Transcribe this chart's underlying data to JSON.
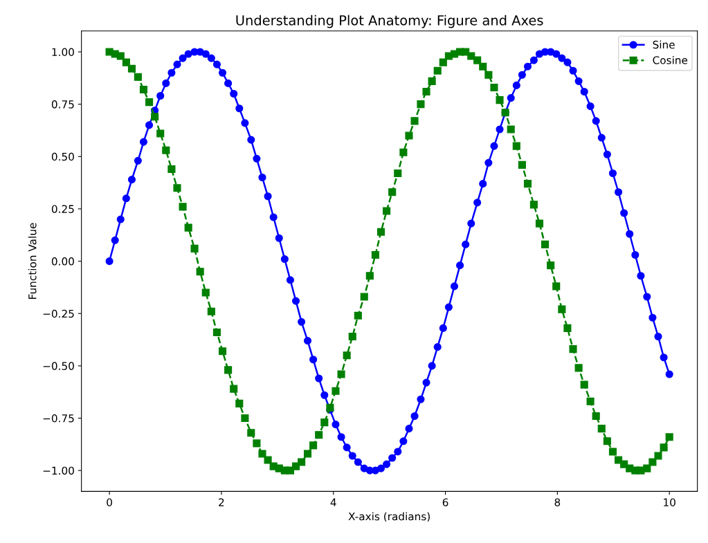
{
  "chart_data": {
    "type": "line",
    "title": "Understanding Plot Anatomy: Figure and Axes",
    "xlabel": "X-axis (radians)",
    "ylabel": "Function Value",
    "x": [
      0.0,
      0.1,
      0.2,
      0.3,
      0.4,
      0.51,
      0.61,
      0.71,
      0.81,
      0.91,
      1.01,
      1.11,
      1.21,
      1.31,
      1.41,
      1.52,
      1.62,
      1.72,
      1.82,
      1.92,
      2.02,
      2.12,
      2.22,
      2.32,
      2.42,
      2.53,
      2.63,
      2.73,
      2.83,
      2.93,
      3.03,
      3.13,
      3.23,
      3.33,
      3.43,
      3.54,
      3.64,
      3.74,
      3.84,
      3.94,
      4.04,
      4.14,
      4.24,
      4.34,
      4.44,
      4.55,
      4.65,
      4.75,
      4.85,
      4.95,
      5.05,
      5.15,
      5.25,
      5.35,
      5.45,
      5.56,
      5.66,
      5.76,
      5.86,
      5.96,
      6.06,
      6.16,
      6.26,
      6.36,
      6.46,
      6.57,
      6.67,
      6.77,
      6.87,
      6.97,
      7.07,
      7.17,
      7.27,
      7.37,
      7.47,
      7.58,
      7.68,
      7.78,
      7.88,
      7.98,
      8.08,
      8.18,
      8.28,
      8.38,
      8.48,
      8.59,
      8.69,
      8.79,
      8.89,
      8.99,
      9.09,
      9.19,
      9.29,
      9.39,
      9.49,
      9.6,
      9.7,
      9.8,
      9.9,
      10.0
    ],
    "series": [
      {
        "name": "Sine",
        "color": "#0000ff",
        "marker": "circle",
        "line_style": "solid",
        "values": [
          0.0,
          0.1,
          0.2,
          0.3,
          0.39,
          0.48,
          0.57,
          0.65,
          0.72,
          0.79,
          0.85,
          0.9,
          0.94,
          0.97,
          0.99,
          1.0,
          1.0,
          0.99,
          0.97,
          0.94,
          0.9,
          0.85,
          0.8,
          0.73,
          0.66,
          0.58,
          0.49,
          0.4,
          0.31,
          0.21,
          0.11,
          0.01,
          -0.09,
          -0.19,
          -0.29,
          -0.38,
          -0.47,
          -0.56,
          -0.64,
          -0.71,
          -0.78,
          -0.84,
          -0.89,
          -0.93,
          -0.96,
          -0.99,
          -1.0,
          -1.0,
          -0.99,
          -0.97,
          -0.94,
          -0.91,
          -0.86,
          -0.8,
          -0.74,
          -0.66,
          -0.58,
          -0.5,
          -0.41,
          -0.32,
          -0.22,
          -0.12,
          -0.02,
          0.08,
          0.18,
          0.28,
          0.37,
          0.47,
          0.55,
          0.63,
          0.71,
          0.78,
          0.84,
          0.89,
          0.93,
          0.96,
          0.99,
          1.0,
          1.0,
          0.99,
          0.97,
          0.95,
          0.91,
          0.86,
          0.81,
          0.74,
          0.67,
          0.59,
          0.51,
          0.42,
          0.33,
          0.23,
          0.13,
          0.03,
          -0.07,
          -0.17,
          -0.27,
          -0.36,
          -0.46,
          -0.54
        ]
      },
      {
        "name": "Cosine",
        "color": "#008000",
        "marker": "square",
        "line_style": "dashed",
        "values": [
          1.0,
          0.99,
          0.98,
          0.95,
          0.92,
          0.88,
          0.82,
          0.76,
          0.69,
          0.61,
          0.53,
          0.44,
          0.35,
          0.26,
          0.16,
          0.06,
          -0.05,
          -0.15,
          -0.24,
          -0.34,
          -0.43,
          -0.52,
          -0.61,
          -0.68,
          -0.75,
          -0.82,
          -0.87,
          -0.92,
          -0.95,
          -0.98,
          -0.99,
          -1.0,
          -1.0,
          -0.98,
          -0.96,
          -0.92,
          -0.88,
          -0.83,
          -0.77,
          -0.7,
          -0.62,
          -0.54,
          -0.45,
          -0.36,
          -0.26,
          -0.17,
          -0.07,
          0.03,
          0.14,
          0.24,
          0.33,
          0.42,
          0.52,
          0.6,
          0.67,
          0.75,
          0.81,
          0.86,
          0.91,
          0.95,
          0.98,
          0.99,
          1.0,
          1.0,
          0.98,
          0.96,
          0.93,
          0.89,
          0.83,
          0.77,
          0.71,
          0.63,
          0.55,
          0.46,
          0.37,
          0.27,
          0.18,
          0.08,
          -0.02,
          -0.12,
          -0.23,
          -0.32,
          -0.42,
          -0.51,
          -0.59,
          -0.67,
          -0.74,
          -0.8,
          -0.86,
          -0.91,
          -0.95,
          -0.97,
          -0.99,
          -1.0,
          -1.0,
          -0.99,
          -0.96,
          -0.93,
          -0.89,
          -0.84
        ]
      }
    ],
    "xlim": [
      -0.5,
      10.5
    ],
    "ylim": [
      -1.1,
      1.1
    ],
    "xticks": [
      0,
      2,
      4,
      6,
      8,
      10
    ],
    "yticks": [
      {
        "value": -1,
        "label": "−1.00"
      },
      {
        "value": -0.75,
        "label": "−0.75"
      },
      {
        "value": -0.5,
        "label": "−0.50"
      },
      {
        "value": -0.25,
        "label": "−0.25"
      },
      {
        "value": 0,
        "label": "0.00"
      },
      {
        "value": 0.25,
        "label": "0.25"
      },
      {
        "value": 0.5,
        "label": "0.50"
      },
      {
        "value": 0.75,
        "label": "0.75"
      },
      {
        "value": 1,
        "label": "1.00"
      }
    ],
    "legend": "top right",
    "grid": false
  }
}
